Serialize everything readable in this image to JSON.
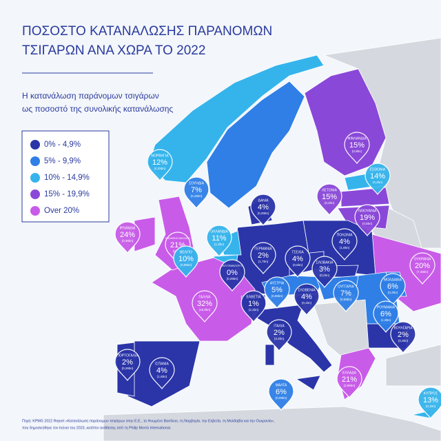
{
  "header": {
    "title_lines": [
      "ΠΟΣΟΣΤΟ ΚΑΤΑΝΑΛΩΣΗΣ ΠΑΡΑΝΟΜΩΝ",
      "ΤΣΙΓΑΡΩΝ ΑΝΑ ΧΩΡΑ ΤΟ 2022"
    ],
    "subtitle_lines": [
      "Η κατανάλωση παράνομων τσιγάρων",
      "ως ποσοστό της συνολικής κατανάλωσης"
    ]
  },
  "legend": [
    {
      "label": "0% - 4,9%",
      "color": "#2b35a8"
    },
    {
      "label": "5% - 9,9%",
      "color": "#2f7fe6"
    },
    {
      "label": "10% - 14,9%",
      "color": "#35b4ec"
    },
    {
      "label": "15% - 19,9%",
      "color": "#8a48d8"
    },
    {
      "label": "Over 20%",
      "color": "#c85ce8"
    }
  ],
  "pins": [
    {
      "name": "ΝΟΡΒΗΓΙΑ",
      "percent": "12%",
      "volume": "(0,25bn)",
      "color": "#35b4ec"
    },
    {
      "name": "ΣΟΥΗΔΙΑ",
      "percent": "7%",
      "volume": "(0,45bn)",
      "color": "#2f7fe6"
    },
    {
      "name": "ΦΙΝΛΑΝΔΙΑ",
      "percent": "15%",
      "volume": "(0,9bn)",
      "color": "#8a48d8"
    },
    {
      "name": "ΕΣΘΟΝΙΑ",
      "percent": "14%",
      "volume": "(0,2bn)",
      "color": "#35b4ec"
    },
    {
      "name": "ΛΕΤΟΝΙΑ",
      "percent": "15%",
      "volume": "(0,2bn)",
      "color": "#8a48d8"
    },
    {
      "name": "ΛΙΘΟΥΑΝΙΑ",
      "percent": "19%",
      "volume": "(0,5bn)",
      "color": "#8a48d8"
    },
    {
      "name": "ΔΑΝΙΑ",
      "percent": "4%",
      "volume": "(0,25bn)",
      "color": "#2b35a8"
    },
    {
      "name": "ΟΛΛΑΝΔΙΑ",
      "percent": "11%",
      "volume": "(1,3bn)",
      "color": "#35b4ec"
    },
    {
      "name": "ΙΡΛΑΝΔΙΑ",
      "percent": "24%",
      "volume": "(0,36bn)",
      "color": "#c85ce8"
    },
    {
      "name": "ΗΝΩΜΕΝΟ ΒΑΣΙΛΕΙΟ",
      "percent": "21%",
      "volume": "(5,9bn)",
      "color": "#c85ce8"
    },
    {
      "name": "ΒΕΛΓΙΟ",
      "percent": "10%",
      "volume": "(0,95bn)",
      "color": "#35b4ec"
    },
    {
      "name": "ΛΟΥΞΕΜΒΟΥΡΓΟ",
      "percent": "0%",
      "volume": "(0,25bn)",
      "color": "#2b35a8"
    },
    {
      "name": "ΓΕΡΜΑΝΙΑ",
      "percent": "2%",
      "volume": "(1,7bn)",
      "color": "#2b35a8"
    },
    {
      "name": "ΤΣΕΧΙΑ",
      "percent": "4%",
      "volume": "(0,5bn)",
      "color": "#2b35a8"
    },
    {
      "name": "ΠΟΛΩΝΙΑ",
      "percent": "4%",
      "volume": "(1,8bn)",
      "color": "#2b35a8"
    },
    {
      "name": "ΣΛΟΒΑΚΙΑ",
      "percent": "3%",
      "volume": "(0,2bn)",
      "color": "#2b35a8"
    },
    {
      "name": "ΟΥΚΡΑΝΙΑ",
      "percent": "20%",
      "volume": "(7,45bn)",
      "color": "#c85ce8"
    },
    {
      "name": "ΜΟΛΔΑΒΙΑ",
      "percent": "6%",
      "volume": "(0,2bn)",
      "color": "#2f7fe6"
    },
    {
      "name": "ΑΥΣΤΡΙΑ",
      "percent": "5%",
      "volume": "(0,65bn)",
      "color": "#2f7fe6"
    },
    {
      "name": "ΣΛΟΒΕΝΙΑ",
      "percent": "4%",
      "volume": "(0,1bn)",
      "color": "#2b35a8"
    },
    {
      "name": "ΟΥΓΓΑΡΙΑ",
      "percent": "7%",
      "volume": "(0,55bn)",
      "color": "#2f7fe6"
    },
    {
      "name": "ΡΟΥΜΑΝΙΑ",
      "percent": "6%",
      "volume": "(1,8bn)",
      "color": "#2f7fe6"
    },
    {
      "name": "ΕΛΒΕΤΙΑ",
      "percent": "1%",
      "volume": "(2,2bn)",
      "color": "#2b35a8"
    },
    {
      "name": "ΓΑΛΛΙΑ",
      "percent": "32%",
      "volume": "(16,9bn)",
      "color": "#c85ce8"
    },
    {
      "name": "ΒΟΥΛΓΑΡΙΑ",
      "percent": "2%",
      "volume": "(0,3bn)",
      "color": "#2b35a8"
    },
    {
      "name": "ΙΤΑΛΙΑ",
      "percent": "2%",
      "volume": "(3,4bn)",
      "color": "#2b35a8"
    },
    {
      "name": "ΠΟΡΤΟΓΑΛΙΑ",
      "percent": "2%",
      "volume": "(0,26bn)",
      "color": "#2b35a8"
    },
    {
      "name": "ΙΣΠΑΝΙΑ",
      "percent": "4%",
      "volume": "(1,6bn)",
      "color": "#2b35a8"
    },
    {
      "name": "ΜΑΛΤΑ",
      "percent": "6%",
      "volume": "(0,05bn)",
      "color": "#2f7fe6"
    },
    {
      "name": "ΕΛΛΑΔΑ",
      "percent": "21%",
      "volume": "(2,95bn)",
      "color": "#c85ce8"
    },
    {
      "name": "ΚΥΠΡΟΣ",
      "percent": "13%",
      "volume": "(0,1bn)",
      "color": "#35b4ec"
    }
  ],
  "footer": {
    "source_lines": [
      "Πηγή: KPMG 2022 Report «Κατανάλωση παράνομων τσιγάρων στην Ε.Ε., το Ηνωμένο Βασίλειο, τη Νορβηγία, την Ελβετία, τη Μολδαβία και την Ουκρανία»,",
      "που δημοσιεύθηκε τον Ιούνιο του 2023, κατόπιν ανάθεσης από τη Philip Morris International."
    ]
  }
}
